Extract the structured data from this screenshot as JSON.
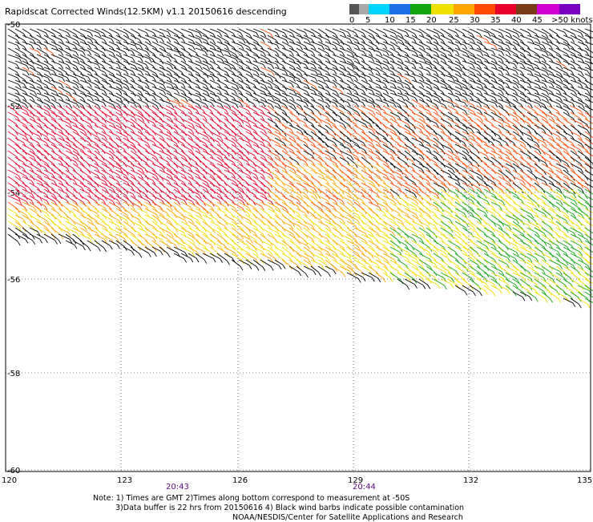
{
  "title": "Rapidscat Corrected Winds(12.5KM) v1.1 20150616 descending",
  "legend": {
    "labels": [
      "0",
      "5",
      "10",
      "15",
      "20",
      "25",
      "30",
      "35",
      "40",
      "45",
      ">50 knots"
    ],
    "colors": [
      "#555555",
      "#aaaaaa",
      "#00d4ff",
      "#1e6ee6",
      "#11a611",
      "#f0e000",
      "#ffa500",
      "#ff4a00",
      "#e8002a",
      "#7a3b18",
      "#d000d0",
      "#7a00c0"
    ]
  },
  "map": {
    "lon_ticks": [
      "120",
      "123",
      "126",
      "129",
      "132",
      "135"
    ],
    "lat_ticks": [
      "-50",
      "-52",
      "-54",
      "-56",
      "-58",
      "-60"
    ],
    "time_labels": [
      "20:43",
      "20:44"
    ]
  },
  "notes": {
    "line1": "Note: 1) Times are GMT 2)Times along bottom correspond to measurement at -50S",
    "line2": "3)Data buffer is 22 hrs from 20150616 4) Black wind barbs indicate possible contamination",
    "line3": "NOAA/NESDIS/Center for Satellite Applications and Research"
  }
}
